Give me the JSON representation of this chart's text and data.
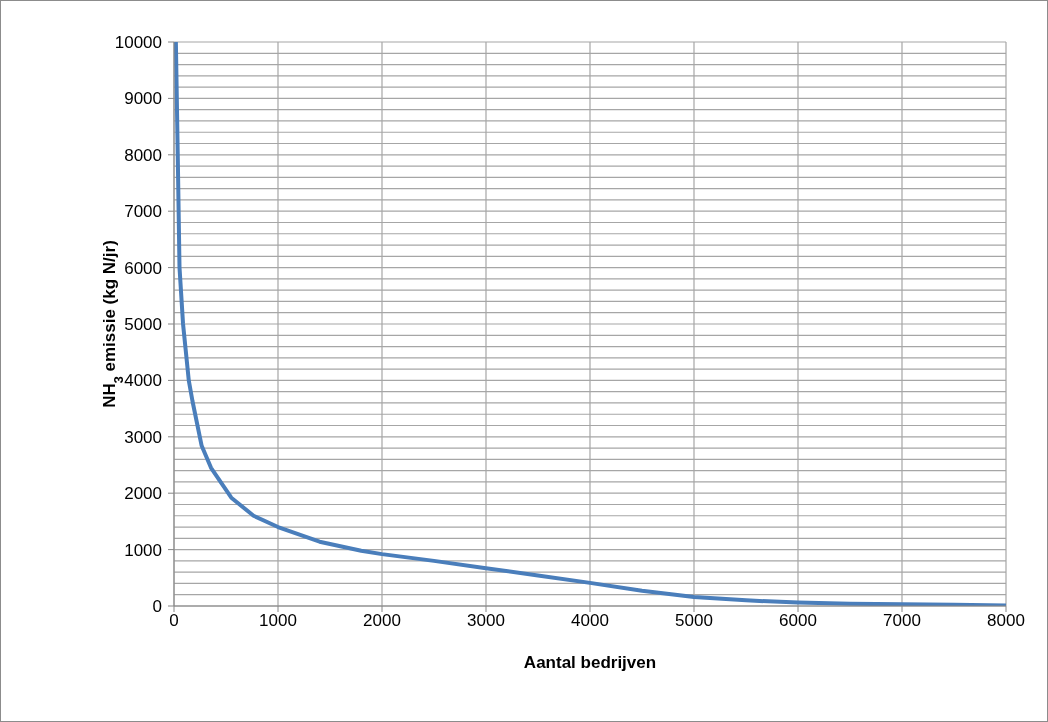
{
  "chart_data": {
    "type": "line",
    "xlabel": "Aantal bedrijven",
    "ylabel": "NH$_{3}$ emissie (kg N/jr)",
    "x": [
      18,
      36,
      53,
      87,
      142,
      178,
      266,
      356,
      551,
      765,
      1000,
      1400,
      1800,
      2000,
      2500,
      3000,
      3500,
      4000,
      4500,
      5000,
      5500,
      6000,
      6500,
      7000,
      7500,
      8000
    ],
    "series": [
      {
        "color": "#4a7ebb",
        "values": [
          10000,
          8000,
          6000,
          5000,
          4000,
          3630,
          2840,
          2450,
          1920,
          1600,
          1400,
          1140,
          980,
          920,
          800,
          670,
          540,
          410,
          270,
          160,
          100,
          60,
          40,
          30,
          20,
          10
        ]
      }
    ],
    "xlim": [
      0,
      8000
    ],
    "xticks": [
      0,
      1000,
      2000,
      3000,
      4000,
      5000,
      6000,
      7000,
      8000
    ],
    "ylim": [
      0,
      10000
    ],
    "yticks": [
      0,
      {
        "value": 200,
        "label": null
      },
      {
        "value": 400,
        "label": null
      },
      {
        "value": 600,
        "label": null
      },
      {
        "value": 800,
        "label": null
      },
      1000,
      {
        "value": 1200,
        "label": null
      },
      {
        "value": 1400,
        "label": null
      },
      {
        "value": 1600,
        "label": null
      },
      {
        "value": 1800,
        "label": null
      },
      2000,
      {
        "value": 2200,
        "label": null
      },
      {
        "value": 2400,
        "label": null
      },
      {
        "value": 2600,
        "label": null
      },
      {
        "value": 2800,
        "label": null
      },
      3000,
      {
        "value": 3200,
        "label": null
      },
      {
        "value": 3400,
        "label": null
      },
      {
        "value": 3600,
        "label": null
      },
      {
        "value": 3800,
        "label": null
      },
      4000,
      {
        "value": 4200,
        "label": null
      },
      {
        "value": 4400,
        "label": null
      },
      {
        "value": 4600,
        "label": null
      },
      {
        "value": 4800,
        "label": null
      },
      5000,
      {
        "value": 5200,
        "label": null
      },
      {
        "value": 5400,
        "label": null
      },
      {
        "value": 5600,
        "label": null
      },
      {
        "value": 5800,
        "label": null
      },
      6000,
      {
        "value": 6200,
        "label": null
      },
      {
        "value": 6400,
        "label": null
      },
      {
        "value": 6600,
        "label": null
      },
      {
        "value": 6800,
        "label": null
      },
      7000,
      {
        "value": 7200,
        "label": null
      },
      {
        "value": 7400,
        "label": null
      },
      {
        "value": 7600,
        "label": null
      },
      {
        "value": 7800,
        "label": null
      },
      8000,
      {
        "value": 8200,
        "label": null
      },
      {
        "value": 8400,
        "label": null
      },
      {
        "value": 8600,
        "label": null
      },
      {
        "value": 8800,
        "label": null
      },
      9000,
      {
        "value": 9200,
        "label": null
      },
      {
        "value": 9400,
        "label": null
      },
      {
        "value": 9600,
        "label": null
      },
      {
        "value": 9800,
        "label": null
      },
      10000
    ],
    "grid": true,
    "marker": "none",
    "line_style": "solid"
  }
}
